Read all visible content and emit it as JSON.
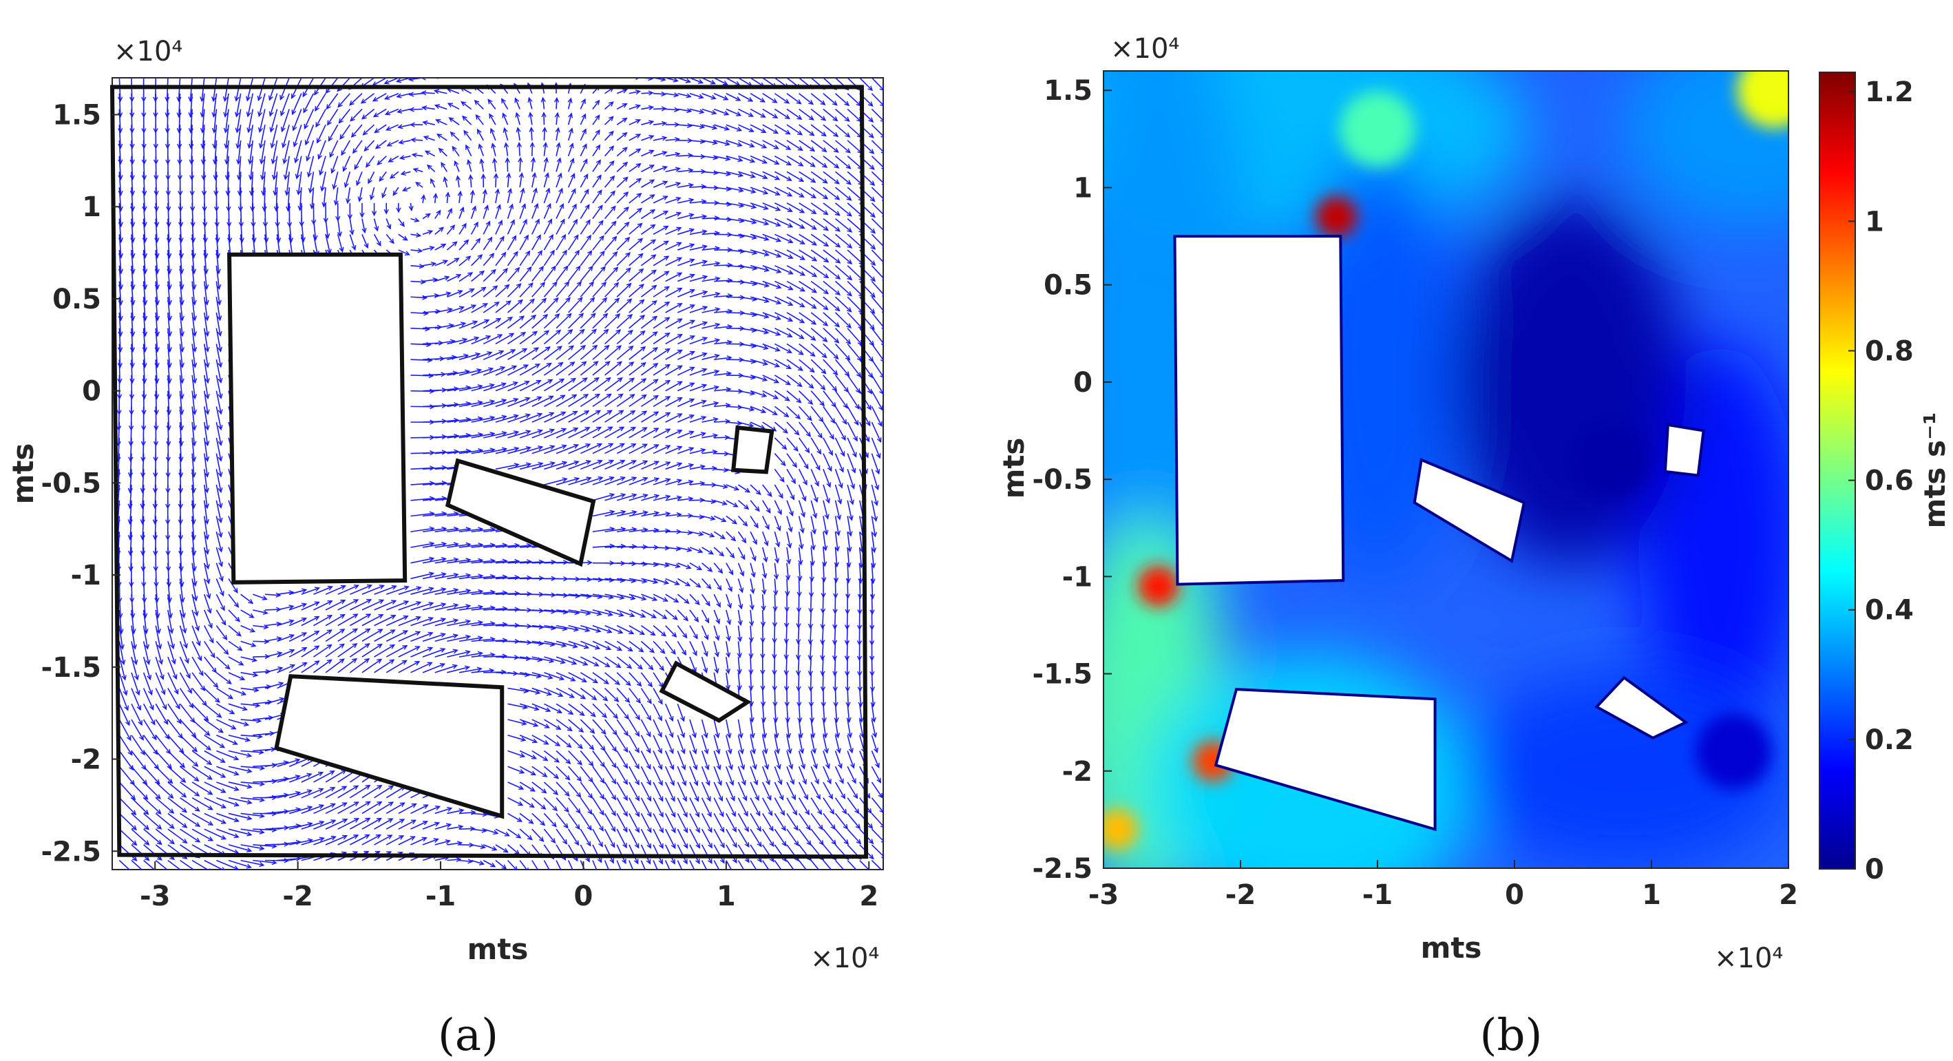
{
  "chart_data": [
    {
      "panel": "(a)",
      "type": "quiver",
      "xlabel": "mts",
      "ylabel": "mts",
      "x_multiplier": "×10⁴",
      "y_multiplier": "×10⁴",
      "xlim": [
        -3.3,
        2.1
      ],
      "ylim": [
        -2.6,
        1.7
      ],
      "xticks": [
        -3,
        -2,
        -1,
        0,
        1,
        2
      ],
      "xtick_labels": [
        "-3",
        "-2",
        "-1",
        "0",
        "1",
        "2"
      ],
      "yticks": [
        1.5,
        1,
        0.5,
        0,
        -0.5,
        -1,
        -1.5,
        -2,
        -2.5
      ],
      "ytick_labels": [
        "1.5",
        "1",
        "0.5",
        "0",
        "-0.5",
        "-1",
        "-1.5",
        "-2",
        "-2.5"
      ],
      "arrow_color": "#1a1aff",
      "domain_boundary": [
        [
          -3.3,
          1.65
        ],
        [
          1.95,
          1.65
        ],
        [
          1.98,
          -2.53
        ],
        [
          -3.25,
          -2.52
        ]
      ],
      "islands": [
        [
          [
            -2.48,
            0.74
          ],
          [
            -1.28,
            0.74
          ],
          [
            -1.25,
            -1.03
          ],
          [
            -2.45,
            -1.04
          ]
        ],
        [
          [
            -0.88,
            -0.38
          ],
          [
            0.07,
            -0.6
          ],
          [
            -0.02,
            -0.94
          ],
          [
            -0.95,
            -0.62
          ]
        ],
        [
          [
            1.08,
            -0.2
          ],
          [
            1.32,
            -0.22
          ],
          [
            1.28,
            -0.44
          ],
          [
            1.05,
            -0.43
          ]
        ],
        [
          [
            -2.05,
            -1.55
          ],
          [
            -0.57,
            -1.61
          ],
          [
            -0.57,
            -2.31
          ],
          [
            -2.15,
            -1.94
          ]
        ],
        [
          [
            0.65,
            -1.48
          ],
          [
            1.15,
            -1.69
          ],
          [
            0.95,
            -1.79
          ],
          [
            0.55,
            -1.63
          ]
        ]
      ]
    },
    {
      "panel": "(b)",
      "type": "heatmap",
      "xlabel": "mts",
      "ylabel": "mts",
      "x_multiplier": "×10⁴",
      "y_multiplier": "×10⁴",
      "xlim": [
        -3,
        2
      ],
      "ylim": [
        -2.5,
        1.6
      ],
      "xticks": [
        -3,
        -2,
        -1,
        0,
        1,
        2
      ],
      "xtick_labels": [
        "-3",
        "-2",
        "-1",
        "0",
        "1",
        "2"
      ],
      "yticks": [
        1.5,
        1,
        0.5,
        0,
        -0.5,
        -1,
        -1.5,
        -2,
        -2.5
      ],
      "ytick_labels": [
        "1.5",
        "1",
        "0.5",
        "0",
        "-0.5",
        "-1",
        "-1.5",
        "-2",
        "-2.5"
      ],
      "colormap": "jet",
      "colorbar": {
        "label": "mts s⁻¹",
        "range": [
          0,
          1.23
        ],
        "ticks": [
          0,
          0.2,
          0.4,
          0.6,
          0.8,
          1,
          1.2
        ],
        "tick_labels": [
          "0",
          "0.2",
          "0.4",
          "0.6",
          "0.8",
          "1",
          "1.2"
        ],
        "position": "right"
      },
      "field_features": [
        {
          "x": -1.3,
          "y": 0.85,
          "value": 1.15
        },
        {
          "x": -2.6,
          "y": -1.05,
          "value": 1.05
        },
        {
          "x": -2.2,
          "y": -1.95,
          "value": 1.0
        },
        {
          "x": -2.9,
          "y": -2.3,
          "value": 0.85
        },
        {
          "x": 1.9,
          "y": 1.5,
          "value": 0.75
        },
        {
          "x": -1.0,
          "y": 1.3,
          "value": 0.55
        },
        {
          "x": 0.7,
          "y": -0.4,
          "value": 0.05
        },
        {
          "x": 1.6,
          "y": -1.9,
          "value": 0.1
        }
      ],
      "islands": [
        [
          [
            -2.48,
            0.75
          ],
          [
            -1.27,
            0.75
          ],
          [
            -1.25,
            -1.02
          ],
          [
            -2.46,
            -1.04
          ]
        ],
        [
          [
            -0.68,
            -0.4
          ],
          [
            0.07,
            -0.62
          ],
          [
            -0.02,
            -0.92
          ],
          [
            -0.73,
            -0.62
          ]
        ],
        [
          [
            1.12,
            -0.22
          ],
          [
            1.38,
            -0.25
          ],
          [
            1.34,
            -0.48
          ],
          [
            1.1,
            -0.46
          ]
        ],
        [
          [
            -2.03,
            -1.58
          ],
          [
            -0.58,
            -1.63
          ],
          [
            -0.58,
            -2.3
          ],
          [
            -2.18,
            -1.97
          ]
        ],
        [
          [
            0.8,
            -1.52
          ],
          [
            1.25,
            -1.75
          ],
          [
            1.01,
            -1.83
          ],
          [
            0.6,
            -1.67
          ]
        ]
      ]
    }
  ],
  "captions": {
    "a": "(a)",
    "b": "(b)"
  }
}
